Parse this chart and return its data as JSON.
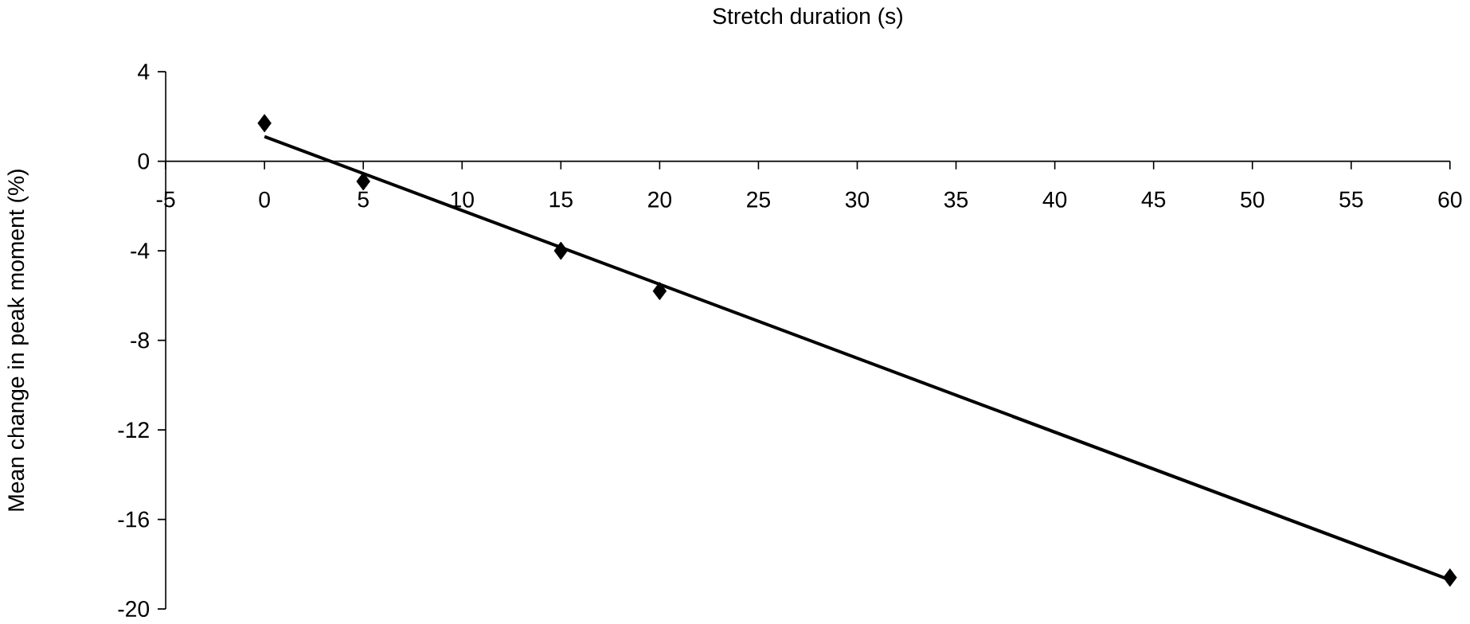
{
  "chart_data": {
    "type": "scatter",
    "xlabel": "Stretch duration (s)",
    "ylabel": "Mean change in peak moment (%)",
    "xlim": [
      -5,
      60
    ],
    "xticks": [
      -5,
      0,
      5,
      10,
      15,
      20,
      25,
      30,
      35,
      40,
      45,
      50,
      55,
      60
    ],
    "ylim": [
      -20,
      4
    ],
    "yticks": [
      -20,
      -16,
      -12,
      -8,
      -4,
      0,
      4
    ],
    "marker": "diamond",
    "series": [
      {
        "color": "#000000",
        "x": [
          0,
          5,
          15,
          20,
          60
        ],
        "values": [
          1.7,
          -0.9,
          -4.0,
          -5.8,
          -18.6
        ]
      },
      {
        "type": "line",
        "color": "#000000",
        "x": [
          0,
          60
        ],
        "values": [
          1.1,
          -18.7
        ],
        "marker": "none",
        "line_style": "solid"
      }
    ]
  }
}
